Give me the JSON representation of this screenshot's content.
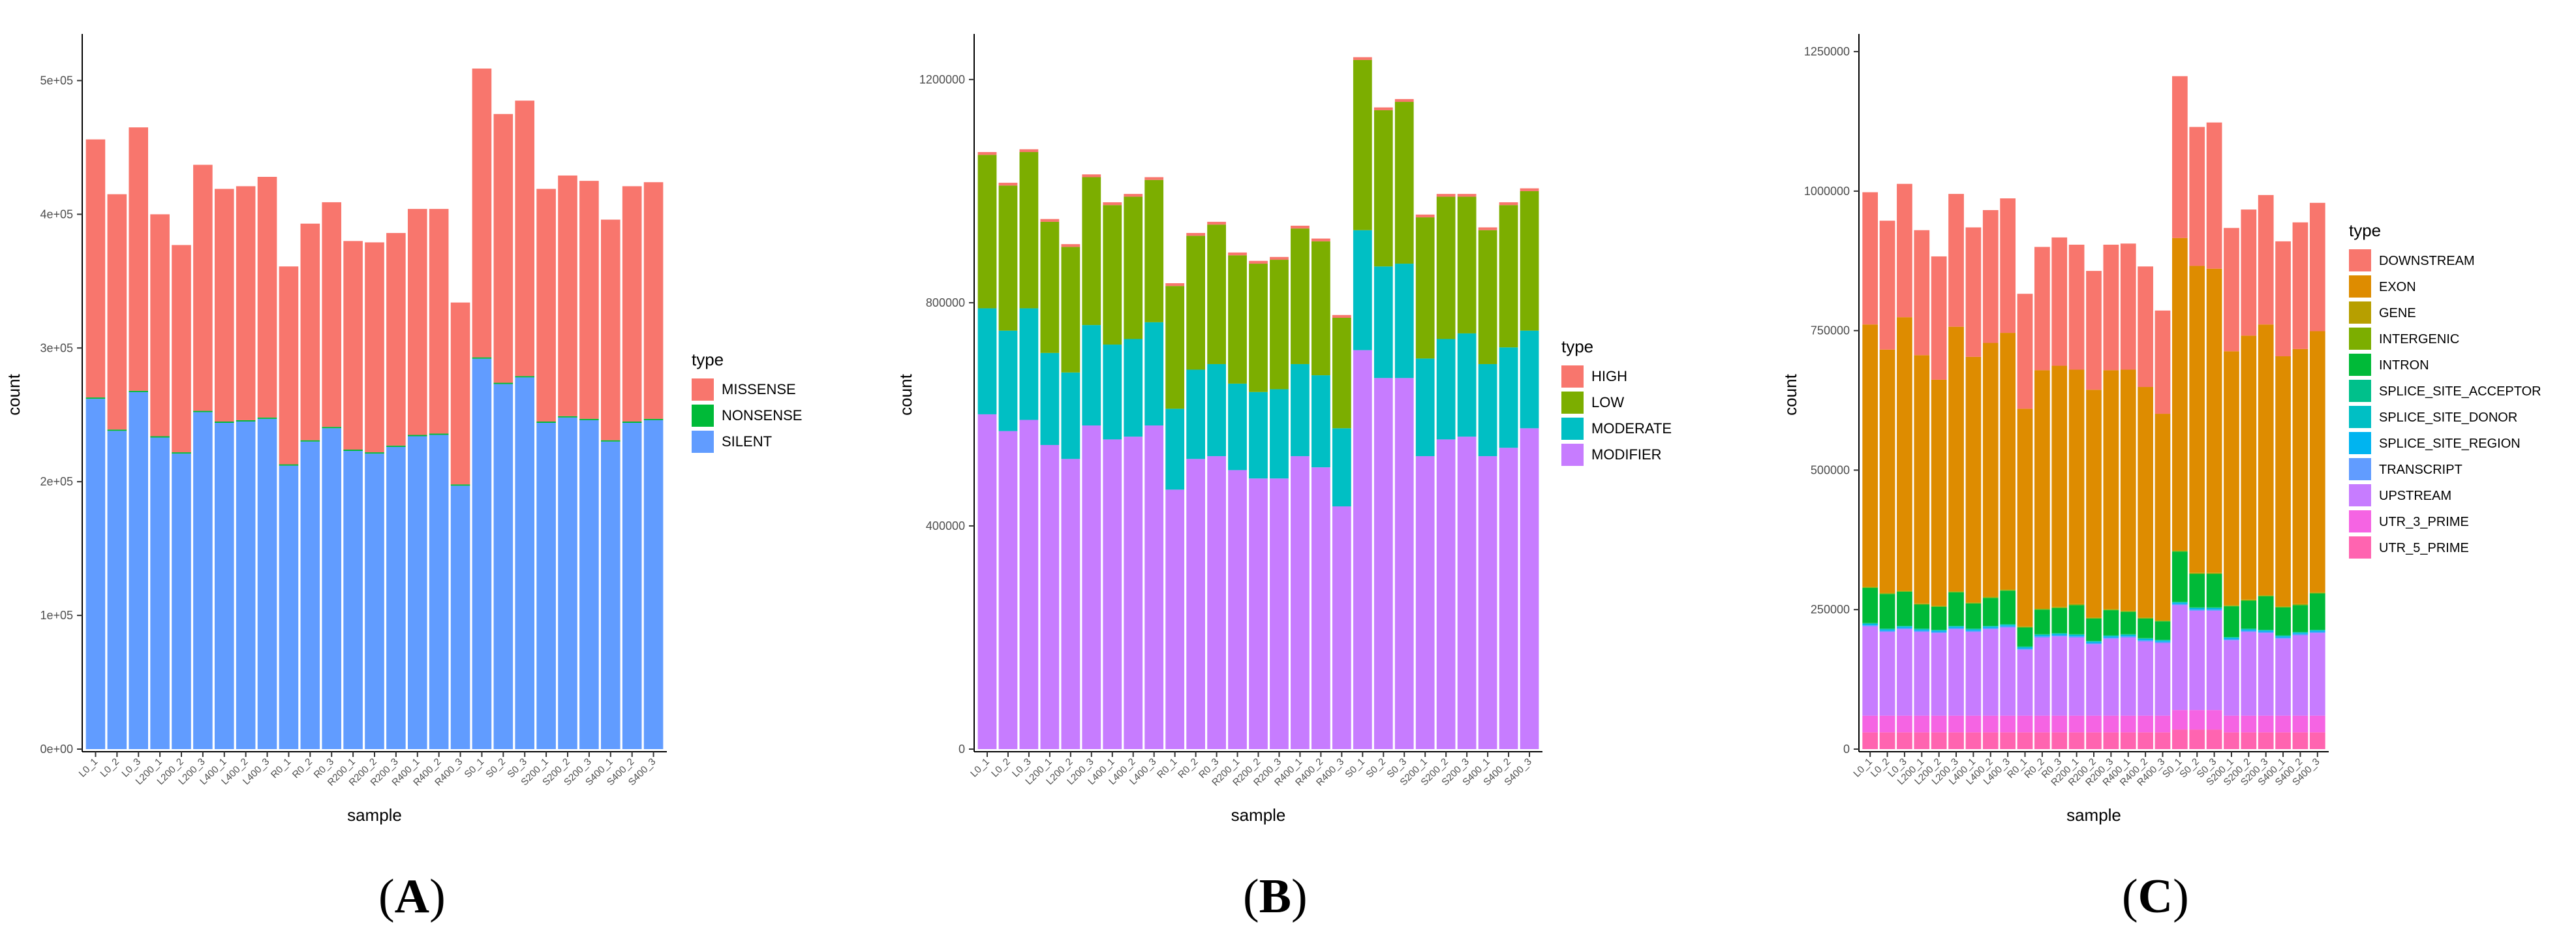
{
  "samples": [
    "L0_1",
    "L0_2",
    "L0_3",
    "L200_1",
    "L200_2",
    "L200_3",
    "L400_1",
    "L400_2",
    "L400_3",
    "R0_1",
    "R0_2",
    "R0_3",
    "R200_1",
    "R200_2",
    "R200_3",
    "R400_1",
    "R400_2",
    "R400_3",
    "S0_1",
    "S0_2",
    "S0_3",
    "S200_1",
    "S200_2",
    "S200_3",
    "S400_1",
    "S400_2",
    "S400_3"
  ],
  "panel_labels": {
    "A": {
      "open": "(",
      "letter": "A",
      "close": ")"
    },
    "B": {
      "open": "(",
      "letter": "B",
      "close": ")"
    },
    "C": {
      "open": "(",
      "letter": "C",
      "close": ")"
    }
  },
  "chart_data": [
    {
      "type": "bar",
      "stacked": true,
      "xlabel": "sample",
      "ylabel": "count",
      "legend_title": "type",
      "ylim": [
        0,
        530000
      ],
      "y_ticks": [
        0,
        100000,
        200000,
        300000,
        400000,
        500000
      ],
      "y_tick_labels": [
        "0e+00",
        "1e+05",
        "2e+05",
        "3e+05",
        "4e+05",
        "5e+05"
      ],
      "series": [
        {
          "name": "SILENT",
          "color": "#619CFF",
          "values": [
            262000,
            238000,
            267000,
            233000,
            221000,
            252000,
            244000,
            245000,
            247000,
            212000,
            230000,
            240000,
            223000,
            221000,
            226000,
            234000,
            235000,
            197000,
            292000,
            273000,
            278000,
            244000,
            248000,
            246000,
            230000,
            244000,
            246000
          ]
        },
        {
          "name": "NONSENSE",
          "color": "#00BA38",
          "values": [
            1000,
            1000,
            1000,
            1000,
            1000,
            1000,
            1000,
            1000,
            1000,
            1000,
            1000,
            1000,
            1000,
            1000,
            1000,
            1000,
            1000,
            1000,
            1000,
            1000,
            1000,
            1000,
            1000,
            1000,
            1000,
            1000,
            1000
          ]
        },
        {
          "name": "MISSENSE",
          "color": "#F8766D",
          "values": [
            193000,
            176000,
            197000,
            166000,
            155000,
            184000,
            174000,
            175000,
            180000,
            148000,
            162000,
            168000,
            156000,
            157000,
            159000,
            169000,
            168000,
            136000,
            216000,
            201000,
            206000,
            174000,
            180000,
            178000,
            165000,
            176000,
            177000
          ]
        }
      ],
      "legend_order": [
        "MISSENSE",
        "NONSENSE",
        "SILENT"
      ]
    },
    {
      "type": "bar",
      "stacked": true,
      "xlabel": "sample",
      "ylabel": "count",
      "legend_title": "type",
      "ylim": [
        0,
        1270000
      ],
      "y_ticks": [
        0,
        400000,
        800000,
        1200000
      ],
      "y_tick_labels": [
        "0",
        "400000",
        "800000",
        "1200000"
      ],
      "series": [
        {
          "name": "MODIFIER",
          "color": "#C77CFF",
          "values": [
            600000,
            570000,
            590000,
            545000,
            520000,
            580000,
            555000,
            560000,
            580000,
            465000,
            520000,
            525000,
            500000,
            485000,
            485000,
            525000,
            505000,
            435000,
            715000,
            665000,
            665000,
            525000,
            555000,
            560000,
            525000,
            540000,
            575000
          ]
        },
        {
          "name": "MODERATE",
          "color": "#00BFC4",
          "values": [
            190000,
            180000,
            200000,
            165000,
            155000,
            180000,
            170000,
            175000,
            185000,
            145000,
            160000,
            165000,
            155000,
            155000,
            160000,
            165000,
            165000,
            140000,
            215000,
            200000,
            205000,
            175000,
            180000,
            185000,
            165000,
            180000,
            175000
          ]
        },
        {
          "name": "LOW",
          "color": "#7CAE00",
          "values": [
            275000,
            260000,
            280000,
            235000,
            225000,
            265000,
            250000,
            255000,
            255000,
            220000,
            240000,
            250000,
            230000,
            230000,
            232000,
            243000,
            240000,
            198000,
            305000,
            280000,
            290000,
            253000,
            255000,
            245000,
            240000,
            255000,
            250000
          ]
        },
        {
          "name": "HIGH",
          "color": "#F8766D",
          "values": [
            5000,
            5000,
            5000,
            5000,
            5000,
            5000,
            5000,
            5000,
            5000,
            5000,
            5000,
            5000,
            5000,
            5000,
            5000,
            5000,
            5000,
            5000,
            5000,
            5000,
            5000,
            5000,
            5000,
            5000,
            5000,
            5000,
            5000
          ]
        }
      ],
      "legend_order": [
        "HIGH",
        "LOW",
        "MODERATE",
        "MODIFIER"
      ]
    },
    {
      "type": "bar",
      "stacked": true,
      "xlabel": "sample",
      "ylabel": "count",
      "legend_title": "type",
      "ylim": [
        0,
        1270000
      ],
      "y_ticks": [
        0,
        250000,
        500000,
        750000,
        1000000,
        1250000
      ],
      "y_tick_labels": [
        "0",
        "250000",
        "500000",
        "750000",
        "1000000",
        "1250000"
      ],
      "series": [
        {
          "name": "UTR_5_PRIME",
          "color": "#FF64B0",
          "values": [
            30000,
            30000,
            30000,
            30000,
            30000,
            30000,
            30000,
            30000,
            30000,
            30000,
            30000,
            30000,
            30000,
            30000,
            30000,
            30000,
            30000,
            30000,
            35000,
            35000,
            35000,
            30000,
            30000,
            30000,
            30000,
            30000,
            30000
          ]
        },
        {
          "name": "UTR_3_PRIME",
          "color": "#F564E3",
          "values": [
            30000,
            30000,
            30000,
            30000,
            30000,
            30000,
            30000,
            30000,
            30000,
            30000,
            30000,
            30000,
            30000,
            30000,
            30000,
            30000,
            30000,
            30000,
            35000,
            35000,
            35000,
            30000,
            30000,
            30000,
            30000,
            30000,
            30000
          ]
        },
        {
          "name": "UPSTREAM",
          "color": "#C77CFF",
          "values": [
            160000,
            150000,
            155000,
            150000,
            148000,
            155000,
            150000,
            155000,
            158000,
            118000,
            140000,
            142000,
            140000,
            128000,
            138000,
            140000,
            133000,
            130000,
            188000,
            178000,
            178000,
            135000,
            150000,
            148000,
            138000,
            144000,
            148000
          ]
        },
        {
          "name": "TRANSCRIPT",
          "color": "#619CFF",
          "values": [
            2000,
            2000,
            2000,
            2000,
            2000,
            2000,
            2000,
            2000,
            2000,
            2000,
            2000,
            2000,
            2000,
            2000,
            2000,
            2000,
            2000,
            2000,
            2000,
            2000,
            2000,
            2000,
            2000,
            2000,
            2000,
            2000,
            2000
          ]
        },
        {
          "name": "SPLICE_SITE_REGION",
          "color": "#00B4F0",
          "values": [
            2000,
            2000,
            2000,
            2000,
            2000,
            2000,
            2000,
            2000,
            2000,
            2000,
            2000,
            2000,
            2000,
            2000,
            2000,
            2000,
            2000,
            2000,
            2000,
            2000,
            2000,
            2000,
            2000,
            2000,
            2000,
            2000,
            2000
          ]
        },
        {
          "name": "SPLICE_SITE_DONOR",
          "color": "#00BFC4",
          "values": [
            1000,
            1000,
            1000,
            1000,
            1000,
            1000,
            1000,
            1000,
            1000,
            1000,
            1000,
            1000,
            1000,
            1000,
            1000,
            1000,
            1000,
            1000,
            1000,
            1000,
            1000,
            1000,
            1000,
            1000,
            1000,
            1000,
            1000
          ]
        },
        {
          "name": "SPLICE_SITE_ACCEPTOR",
          "color": "#00C08B",
          "values": [
            1000,
            1000,
            1000,
            1000,
            1000,
            1000,
            1000,
            1000,
            1000,
            1000,
            1000,
            1000,
            1000,
            1000,
            1000,
            1000,
            1000,
            1000,
            1000,
            1000,
            1000,
            1000,
            1000,
            1000,
            1000,
            1000,
            1000
          ]
        },
        {
          "name": "INTRON",
          "color": "#00BA38",
          "values": [
            63000,
            62000,
            61000,
            43000,
            41000,
            60000,
            45000,
            50000,
            60000,
            34000,
            44000,
            45000,
            52000,
            40000,
            45000,
            40000,
            35000,
            33000,
            90000,
            60000,
            60000,
            55000,
            50000,
            60000,
            50000,
            48000,
            65000
          ]
        },
        {
          "name": "INTERGENIC",
          "color": "#7CAE00",
          "values": [
            1000,
            1000,
            1000,
            1000,
            1000,
            1000,
            1000,
            1000,
            1000,
            1000,
            1000,
            1000,
            1000,
            1000,
            1000,
            1000,
            1000,
            1000,
            1000,
            1000,
            1000,
            1000,
            1000,
            1000,
            1000,
            1000,
            1000
          ]
        },
        {
          "name": "GENE",
          "color": "#B79F00",
          "values": [
            1000,
            1000,
            1000,
            1000,
            1000,
            1000,
            1000,
            1000,
            1000,
            1000,
            1000,
            1000,
            1000,
            1000,
            1000,
            1000,
            1000,
            1000,
            1000,
            1000,
            1000,
            1000,
            1000,
            1000,
            1000,
            1000,
            1000
          ]
        },
        {
          "name": "EXON",
          "color": "#DE8C00",
          "values": [
            470000,
            436000,
            490000,
            445000,
            405000,
            474000,
            440000,
            455000,
            460000,
            390000,
            427000,
            432000,
            420000,
            408000,
            428000,
            432000,
            413000,
            370000,
            560000,
            550000,
            545000,
            455000,
            473000,
            485000,
            448000,
            457000,
            468000
          ]
        },
        {
          "name": "DOWNSTREAM",
          "color": "#F8766D",
          "values": [
            237000,
            231000,
            239000,
            224000,
            221000,
            238000,
            232000,
            238000,
            241000,
            206000,
            221000,
            230000,
            224000,
            213000,
            225000,
            226000,
            216000,
            185000,
            290000,
            249000,
            262000,
            221000,
            226000,
            232000,
            206000,
            227000,
            230000
          ]
        }
      ],
      "legend_order": [
        "DOWNSTREAM",
        "EXON",
        "GENE",
        "INTERGENIC",
        "INTRON",
        "SPLICE_SITE_ACCEPTOR",
        "SPLICE_SITE_DONOR",
        "SPLICE_SITE_REGION",
        "TRANSCRIPT",
        "UPSTREAM",
        "UTR_3_PRIME",
        "UTR_5_PRIME"
      ]
    }
  ]
}
